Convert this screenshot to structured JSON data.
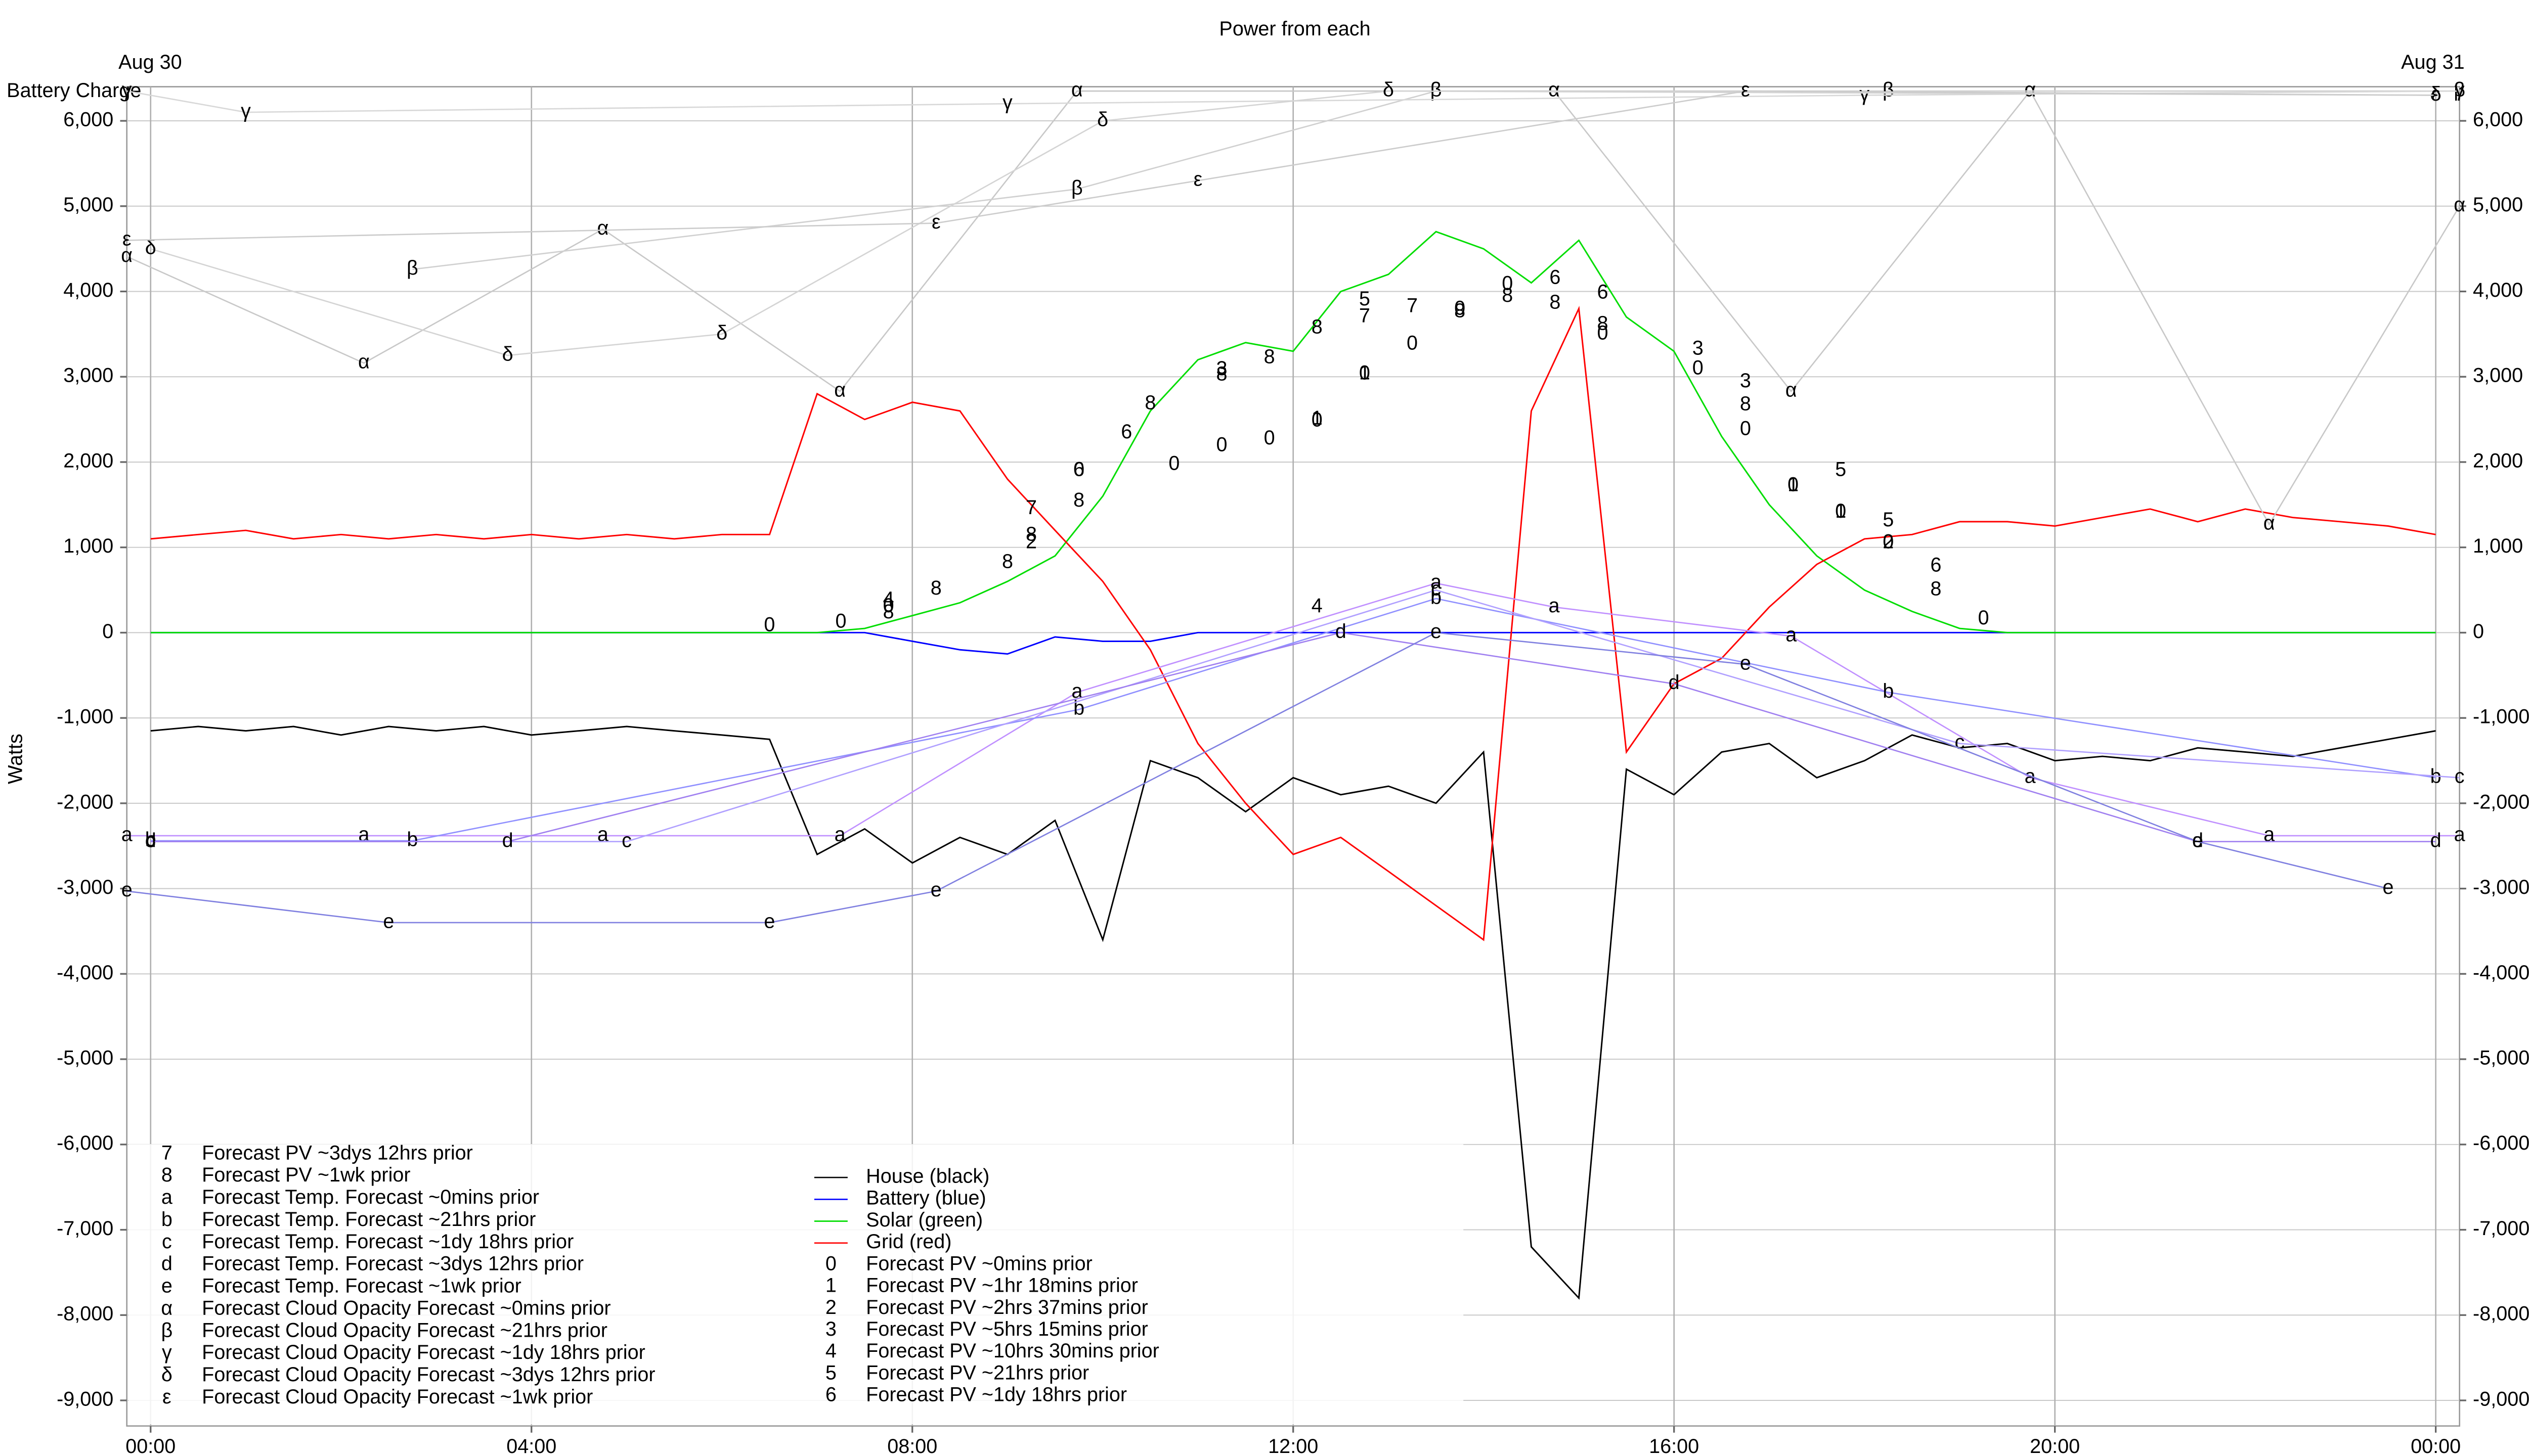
{
  "chart_data": {
    "type": "line",
    "title": "Power from each",
    "y_label": "Watts",
    "annotations": [
      "Aug 30",
      "Aug 31",
      "Battery Charge"
    ],
    "xlim": [
      -0.25,
      24.25
    ],
    "xticks": [
      {
        "value": 0,
        "label": "00:00"
      },
      {
        "value": 4,
        "label": "04:00"
      },
      {
        "value": 8,
        "label": "08:00"
      },
      {
        "value": 12,
        "label": "12:00"
      },
      {
        "value": 16,
        "label": "16:00"
      },
      {
        "value": 20,
        "label": "20:00"
      },
      {
        "value": 24,
        "label": "00:00"
      }
    ],
    "ylim": [
      -9300,
      6400
    ],
    "yticks": [
      {
        "value": 6000,
        "label": "6,000"
      },
      {
        "value": 5000,
        "label": "5,000"
      },
      {
        "value": 4000,
        "label": "4,000"
      },
      {
        "value": 3000,
        "label": "3,000"
      },
      {
        "value": 2000,
        "label": "2,000"
      },
      {
        "value": 1000,
        "label": "1,000"
      },
      0,
      {
        "value": -1000,
        "label": "-1,000"
      },
      {
        "value": -2000,
        "label": "-2,000"
      },
      {
        "value": -3000,
        "label": "-3,000"
      },
      {
        "value": -4000,
        "label": "-4,000"
      },
      {
        "value": -5000,
        "label": "-5,000"
      },
      {
        "value": -6000,
        "label": "-6,000"
      },
      {
        "value": -7000,
        "label": "-7,000"
      },
      {
        "value": -8000,
        "label": "-8,000"
      },
      {
        "value": -9000,
        "label": "-9,000"
      }
    ],
    "grid": true,
    "x": [
      0,
      0.5,
      1,
      1.5,
      2,
      2.5,
      3,
      3.5,
      4,
      4.5,
      5,
      5.5,
      6,
      6.5,
      7,
      7.5,
      8,
      8.5,
      9,
      9.5,
      10,
      10.5,
      11,
      11.5,
      12,
      12.5,
      13,
      13.5,
      14,
      14.5,
      15,
      15.5,
      16,
      16.5,
      17,
      17.5,
      18,
      18.5,
      19,
      19.5,
      20,
      20.5,
      21,
      21.5,
      22,
      22.5,
      23,
      23.5,
      24
    ],
    "series": [
      {
        "name": "House (black)",
        "color": "#000000",
        "style": "line",
        "values": [
          -1150,
          -1100,
          -1150,
          -1100,
          -1200,
          -1100,
          -1150,
          -1100,
          -1200,
          -1150,
          -1100,
          -1150,
          -1200,
          -1250,
          -2600,
          -2300,
          -2700,
          -2400,
          -2600,
          -2200,
          -3600,
          -1500,
          -1700,
          -2100,
          -1700,
          -1900,
          -1800,
          -2000,
          -1400,
          -7200,
          -7800,
          -1600,
          -1900,
          -1400,
          -1300,
          -1700,
          -1500,
          -1200,
          -1350,
          -1300,
          -1500,
          -1450,
          -1500,
          -1350,
          -1400,
          -1450,
          -1350,
          -1250,
          -1150
        ]
      },
      {
        "name": "Battery (blue)",
        "color": "#0000ff",
        "style": "line",
        "values": [
          0,
          0,
          0,
          0,
          0,
          0,
          0,
          0,
          0,
          0,
          0,
          0,
          0,
          0,
          0,
          0,
          -100,
          -200,
          -250,
          -50,
          -100,
          -100,
          0,
          0,
          0,
          0,
          0,
          0,
          0,
          0,
          0,
          0,
          0,
          0,
          0,
          0,
          0,
          0,
          0,
          0,
          0,
          0,
          0,
          0,
          0,
          0,
          0,
          0,
          0
        ]
      },
      {
        "name": "Solar (green)",
        "color": "#00dd00",
        "style": "line",
        "values": [
          0,
          0,
          0,
          0,
          0,
          0,
          0,
          0,
          0,
          0,
          0,
          0,
          0,
          0,
          0,
          50,
          200,
          350,
          600,
          900,
          1600,
          2600,
          3200,
          3400,
          3300,
          4000,
          4200,
          4700,
          4500,
          4100,
          4600,
          3700,
          3300,
          2300,
          1500,
          900,
          500,
          250,
          50,
          0,
          0,
          0,
          0,
          0,
          0,
          0,
          0,
          0,
          0
        ]
      },
      {
        "name": "Grid (red)",
        "color": "#ff0000",
        "style": "line",
        "values": [
          1100,
          1150,
          1200,
          1100,
          1150,
          1100,
          1150,
          1100,
          1150,
          1100,
          1150,
          1100,
          1150,
          1150,
          2800,
          2500,
          2700,
          2600,
          1800,
          1200,
          600,
          -200,
          -1300,
          -2000,
          -2600,
          -2400,
          -2800,
          -3200,
          -3600,
          2600,
          3800,
          -1400,
          -600,
          -300,
          300,
          800,
          1100,
          1150,
          1300,
          1300,
          1250,
          1350,
          1450,
          1300,
          1450,
          1350,
          1300,
          1250,
          1150
        ]
      },
      {
        "name": "Forecast PV ~0mins prior",
        "symbol": "0",
        "color": "#000000",
        "style": "markers",
        "x": [
          6.5,
          7.25,
          7.75,
          9.75,
          10.75,
          11.25,
          11.75,
          12.25,
          12.75,
          13.25,
          13.75,
          14.25,
          15.25,
          16.25,
          16.75,
          17.25,
          17.75,
          18.25,
          19.25
        ],
        "values": [
          80,
          120,
          300,
          1900,
          1970,
          2190,
          2270,
          2480,
          3030,
          3380,
          3790,
          4080,
          3500,
          3090,
          2380,
          1720,
          1410,
          1050,
          160
        ]
      },
      {
        "name": "Forecast PV ~1hr 18mins prior",
        "symbol": "1",
        "color": "#000000",
        "style": "markers",
        "x": [
          12.25,
          12.75,
          17.25,
          17.75
        ],
        "values": [
          2500,
          3030,
          1720,
          1410
        ]
      },
      {
        "name": "Forecast PV ~2hrs 37mins prior",
        "symbol": "2",
        "color": "#000000",
        "style": "markers",
        "x": [
          9.25,
          18.25
        ],
        "values": [
          1050,
          1050
        ]
      },
      {
        "name": "Forecast PV ~5hrs 15mins prior",
        "symbol": "3",
        "color": "#000000",
        "style": "markers",
        "x": [
          11.25,
          16.25,
          16.75
        ],
        "values": [
          3080,
          3320,
          2940
        ]
      },
      {
        "name": "Forecast PV ~10hrs 30mins prior",
        "symbol": "4",
        "color": "#000000",
        "style": "markers",
        "x": [
          7.75,
          12.25
        ],
        "values": [
          380,
          300
        ]
      },
      {
        "name": "Forecast PV ~21hrs prior",
        "symbol": "5",
        "color": "#000000",
        "style": "markers",
        "x": [
          12.75,
          17.75,
          18.25
        ],
        "values": [
          3900,
          1900,
          1310
        ]
      },
      {
        "name": "Forecast PV ~1dy 18hrs prior",
        "symbol": "6",
        "color": "#000000",
        "style": "markers",
        "x": [
          9.75,
          10.25,
          14.75,
          15.25,
          18.75
        ],
        "values": [
          1900,
          2340,
          4150,
          3980,
          780
        ]
      },
      {
        "name": "Forecast PV ~3dys 12hrs prior",
        "symbol": "7",
        "color": "#000000",
        "style": "markers",
        "x": [
          9.25,
          12.75,
          13.25
        ],
        "values": [
          1450,
          3700,
          3820
        ]
      },
      {
        "name": "Forecast PV ~1wk prior",
        "symbol": "8",
        "color": "#000000",
        "style": "markers",
        "x": [
          7.75,
          8.25,
          9.0,
          9.25,
          9.75,
          10.5,
          11.25,
          11.75,
          12.25,
          13.75,
          14.25,
          14.75,
          15.25,
          16.75,
          18.75
        ],
        "values": [
          230,
          510,
          820,
          1140,
          1540,
          2680,
          3020,
          3220,
          3570,
          3760,
          3940,
          3860,
          3610,
          2670,
          500
        ]
      },
      {
        "name": "Forecast Temp. Forecast ~0mins prior",
        "symbol": "a",
        "color": "#c090ff",
        "style": "line",
        "x": [
          -0.25,
          2.24,
          4.75,
          7.24,
          9.73,
          13.5,
          14.74,
          17.23,
          19.74,
          22.25,
          24.25
        ],
        "values": [
          -2380,
          -2380,
          -2380,
          -2380,
          -700,
          580,
          300,
          -40,
          -1700,
          -2380,
          -2380
        ]
      },
      {
        "name": "Forecast Temp. Forecast ~21hrs prior",
        "symbol": "b",
        "color": "#9090ff",
        "style": "line",
        "x": [
          0,
          2.75,
          9.75,
          13.5,
          18.25,
          24
        ],
        "values": [
          -2440,
          -2440,
          -900,
          400,
          -700,
          -1700
        ]
      },
      {
        "name": "Forecast Temp. Forecast ~1dy 18hrs prior",
        "symbol": "c",
        "color": "#b0a0ff",
        "style": "line",
        "x": [
          0,
          5,
          13.5,
          19,
          24.25
        ],
        "values": [
          -2450,
          -2450,
          500,
          -1300,
          -1700
        ]
      },
      {
        "name": "Forecast Temp. Forecast ~3dys 12hrs prior",
        "symbol": "d",
        "color": "#a080f0",
        "style": "line",
        "x": [
          0,
          3.75,
          12.5,
          16,
          21.5,
          24
        ],
        "values": [
          -2450,
          -2450,
          0,
          -600,
          -2450,
          -2450
        ]
      },
      {
        "name": "Forecast Temp. Forecast ~1wk prior",
        "symbol": "e",
        "color": "#8080e0",
        "style": "line",
        "x": [
          -0.25,
          2.5,
          6.5,
          8.25,
          13.5,
          16.75,
          21.5,
          23.5
        ],
        "values": [
          -3030,
          -3400,
          -3400,
          -3030,
          0,
          -370,
          -2450,
          -3000
        ]
      },
      {
        "name": "Forecast Cloud Opacity Forecast ~0mins prior",
        "symbol": "α",
        "color": "#c8c8c8",
        "style": "line",
        "x": [
          -0.25,
          2.24,
          4.75,
          7.24,
          9.73,
          14.74,
          17.23,
          19.74,
          22.25,
          24.25
        ],
        "values": [
          4410,
          3160,
          4730,
          2830,
          6350,
          6350,
          2830,
          6350,
          1270,
          5000
        ]
      },
      {
        "name": "Forecast Cloud Opacity Forecast ~21hrs prior",
        "symbol": "β",
        "color": "#d0d0d0",
        "style": "line",
        "x": [
          2.75,
          9.73,
          13.5,
          18.25,
          24.25
        ],
        "values": [
          4260,
          5200,
          6350,
          6350,
          6350
        ]
      },
      {
        "name": "Forecast Cloud Opacity Forecast ~1dy 18hrs prior",
        "symbol": "γ",
        "color": "#d8d8d8",
        "style": "line",
        "x": [
          -0.25,
          1,
          9,
          18,
          24.25
        ],
        "values": [
          6350,
          6100,
          6200,
          6300,
          6350
        ]
      },
      {
        "name": "Forecast Cloud Opacity Forecast ~3dys 12hrs prior",
        "symbol": "δ",
        "color": "#d4d4d4",
        "style": "line",
        "x": [
          0,
          3.75,
          6,
          10,
          13,
          24
        ],
        "values": [
          4500,
          3250,
          3500,
          6000,
          6350,
          6300
        ]
      },
      {
        "name": "Forecast Cloud Opacity Forecast ~1wk prior",
        "symbol": "ε",
        "color": "#cccccc",
        "style": "line",
        "x": [
          -0.25,
          8.25,
          11,
          16.75,
          24
        ],
        "values": [
          4600,
          4800,
          5300,
          6350,
          6300
        ]
      }
    ]
  }
}
